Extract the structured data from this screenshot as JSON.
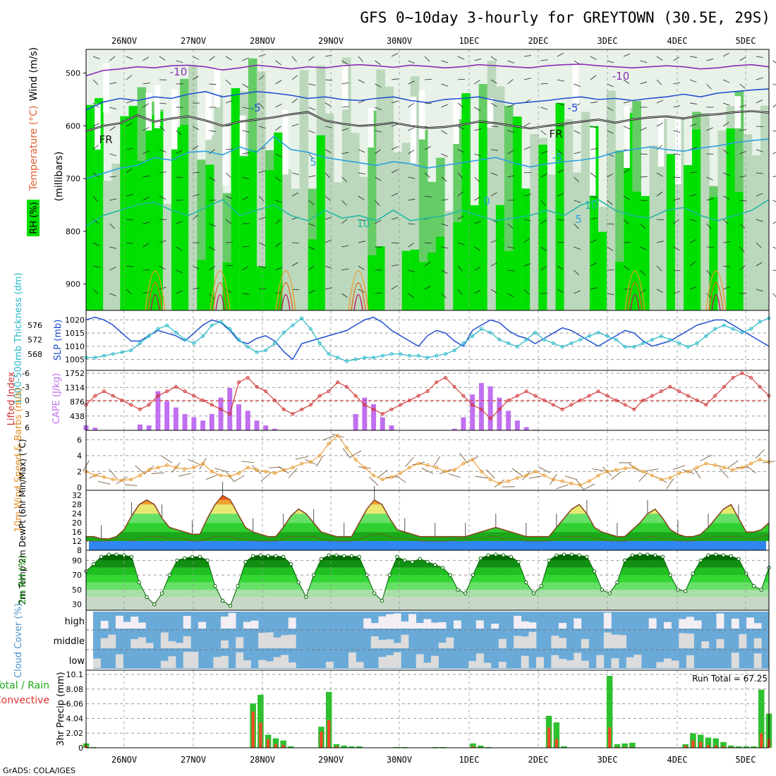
{
  "title": "GFS 0~10day 3-hourly for GREYTOWN (30.5E, 29S)",
  "footer": "GrADS: COLA/IGES",
  "colors": {
    "green": "#00e000",
    "midgreen": "#66cc66",
    "lightgreen": "#bcd8bc",
    "paleGreen": "#e8f2e8",
    "blue": "#1f4fcf",
    "cyan": "#26b8c8",
    "orange": "#e89a30",
    "purple": "#c070f0",
    "red": "#d03030",
    "cloud": "#6aaad8",
    "cloudlight": "#dcdcdc"
  },
  "chart_data": [
    {
      "type": "heatmap",
      "name": "upper-air",
      "dates": [
        "26NOV",
        "27NOV",
        "28NOV",
        "29NOV",
        "30NOV",
        "1DEC",
        "2DEC",
        "3DEC",
        "4DEC",
        "5DEC"
      ],
      "ylabel": "(millibars)",
      "yticks": [
        "500",
        "600",
        "700",
        "800",
        "900"
      ],
      "side_labels": [
        "Wind (m/s)",
        "Temperature (°C)",
        "RH (%)"
      ],
      "contour_labels": [
        "-10",
        "-5",
        "FR",
        "5",
        "10",
        "-10",
        "-5",
        "FR",
        "-5",
        "5",
        "10",
        "0"
      ],
      "temperature_lines": [
        {
          "label": "-10",
          "level": [
            505,
            495,
            492,
            488,
            490,
            486,
            485,
            488,
            494,
            490,
            485,
            488,
            492,
            488,
            490,
            486,
            484,
            486,
            489,
            485,
            487,
            490,
            488,
            484,
            486,
            488,
            490,
            486,
            484,
            483,
            486,
            488,
            490,
            488,
            486,
            488,
            492,
            490,
            486,
            484,
            488
          ]
        },
        {
          "label": "-5",
          "level": [
            570,
            555,
            548,
            552,
            545,
            548,
            540,
            535,
            545,
            540,
            535,
            538,
            542,
            548,
            545,
            550,
            552,
            548,
            545,
            552,
            556,
            550,
            548,
            545,
            552,
            558,
            555,
            552,
            548,
            545,
            550,
            548,
            552,
            548,
            545,
            540,
            545,
            538,
            535,
            532,
            530
          ]
        },
        {
          "label": "FR",
          "level": [
            610,
            600,
            595,
            580,
            592,
            586,
            582,
            590,
            600,
            592,
            588,
            584,
            578,
            574,
            590,
            596,
            600,
            598,
            594,
            600,
            604,
            602,
            598,
            592,
            595,
            600,
            605,
            600,
            596,
            592,
            588,
            594,
            588,
            584,
            582,
            586,
            580,
            578,
            574,
            572,
            575
          ]
        },
        {
          "label": "5",
          "level": [
            700,
            690,
            680,
            675,
            660,
            665,
            650,
            648,
            655,
            640,
            650,
            620,
            645,
            650,
            660,
            665,
            670,
            675,
            668,
            672,
            680,
            675,
            670,
            665,
            660,
            670,
            678,
            672,
            668,
            665,
            660,
            650,
            645,
            640,
            645,
            648,
            642,
            638,
            632,
            628,
            625
          ]
        },
        {
          "label": "10",
          "level": [
            790,
            770,
            760,
            750,
            745,
            760,
            770,
            755,
            740,
            770,
            760,
            750,
            770,
            780,
            760,
            775,
            770,
            780,
            760,
            780,
            775,
            770,
            760,
            770,
            780,
            775,
            770,
            760,
            770,
            750,
            740,
            760,
            770,
            775,
            760,
            755,
            770,
            780,
            770,
            760,
            740
          ]
        }
      ]
    },
    {
      "type": "line",
      "name": "slp-thickness",
      "ylabel_left": "1000-500mb Thickness (dm)",
      "ylabel_right": "SLP (mb)",
      "left_ticks": [
        "576",
        "572",
        "568"
      ],
      "right_ticks": [
        "1020",
        "1015",
        "1010",
        "1005"
      ],
      "series": [
        {
          "name": "SLP (mb)",
          "values": [
            1020,
            1021,
            1020,
            1018,
            1015,
            1012,
            1012,
            1014,
            1016,
            1015,
            1014,
            1012,
            1015,
            1018,
            1020,
            1019,
            1016,
            1012,
            1011,
            1013,
            1014,
            1012,
            1008,
            1005,
            1011,
            1012,
            1013,
            1014,
            1015,
            1016,
            1018,
            1020,
            1021,
            1019,
            1016,
            1014,
            1012,
            1010,
            1014,
            1016,
            1015,
            1012,
            1010,
            1016,
            1018,
            1020,
            1019,
            1016,
            1014,
            1013,
            1011,
            1013,
            1015,
            1017,
            1016,
            1014,
            1012,
            1010,
            1012,
            1014,
            1016,
            1015,
            1012,
            1010,
            1011,
            1012,
            1014,
            1016,
            1018,
            1019,
            1020,
            1020,
            1018,
            1016,
            1014,
            1012,
            1010
          ]
        },
        {
          "name": "1000-500mb Thickness (dm)",
          "values": [
            567,
            567,
            567.5,
            568,
            568.5,
            569,
            571,
            573,
            575,
            576,
            574,
            572,
            571,
            573,
            576,
            577,
            575,
            572,
            570,
            568.5,
            569,
            571,
            574,
            576,
            578,
            575,
            571,
            568,
            567,
            566,
            566.5,
            567,
            567,
            567.5,
            568,
            568,
            567.5,
            567.5,
            567,
            567.5,
            568,
            569,
            571,
            573,
            575,
            574,
            572,
            571,
            570,
            572,
            574,
            572,
            571,
            570,
            571,
            572,
            573,
            574,
            573,
            572,
            570,
            570,
            571,
            572,
            573,
            572,
            571,
            570,
            571,
            573,
            575,
            576,
            575,
            574,
            575,
            577,
            578
          ]
        }
      ]
    },
    {
      "type": "bar",
      "name": "cape-li",
      "ylabel_left": "Lifted Index",
      "ylabel_right": "CAPE (J/kg)",
      "left_ticks": [
        "-6",
        "-3",
        "0",
        "3",
        "6"
      ],
      "right_ticks": [
        "1752",
        "1314",
        "876",
        "438"
      ],
      "cape": [
        150,
        80,
        0,
        0,
        0,
        0,
        180,
        150,
        1200,
        900,
        700,
        500,
        400,
        300,
        500,
        1000,
        1300,
        800,
        600,
        300,
        150,
        50,
        0,
        0,
        0,
        0,
        0,
        0,
        0,
        0,
        500,
        1000,
        800,
        400,
        150,
        0,
        0,
        0,
        0,
        0,
        0,
        50,
        400,
        1100,
        1450,
        1350,
        1000,
        600,
        300,
        100,
        20,
        0,
        0,
        0,
        0,
        0,
        0,
        0,
        0,
        0,
        0,
        0,
        0,
        0,
        0,
        0,
        0,
        0,
        0,
        0,
        0,
        0,
        0,
        0,
        0,
        0,
        0
      ],
      "lifted_index": [
        1,
        -1,
        -2,
        -1,
        0,
        1,
        2,
        1,
        -1,
        -2,
        -3,
        -2,
        -1,
        0,
        1,
        2,
        3,
        -4,
        -5,
        -3,
        -2,
        0,
        2,
        3,
        2,
        1,
        -1,
        -2,
        -4,
        -3,
        -1,
        1,
        2,
        3,
        2,
        1,
        0,
        -1,
        -2,
        -4,
        -5,
        -3,
        -1,
        1,
        2,
        4,
        2,
        0,
        -1,
        -2,
        -1,
        0,
        1,
        2,
        1,
        0,
        -1,
        -2,
        -1,
        0,
        1,
        2,
        0,
        -1,
        -2,
        -3,
        -2,
        -1,
        0,
        1,
        -1,
        -3,
        -5,
        -6,
        -5,
        -3,
        -1
      ]
    },
    {
      "type": "line",
      "name": "wind10m",
      "ylabel": "10m Wind Speed & Barbs (m/s)",
      "yticks": [
        "0",
        "2",
        "4",
        "6"
      ],
      "series": [
        {
          "name": "Speed",
          "values": [
            2,
            1.5,
            1.3,
            1,
            0.9,
            1,
            1.5,
            2.2,
            2.5,
            2.8,
            2.5,
            2.3,
            2.5,
            3,
            2,
            1.5,
            1.4,
            1.8,
            2.5,
            2.2,
            2,
            1.8,
            2.2,
            2.5,
            3,
            3.2,
            4,
            5.5,
            6.5,
            5,
            3.5,
            2.5,
            1.5,
            1,
            1.3,
            1.8,
            2.5,
            3,
            2.8,
            2.5,
            2,
            2.2,
            3,
            3.5,
            2,
            1,
            0.5,
            0.8,
            1.2,
            1.5,
            2,
            1.5,
            1,
            0.8,
            0.5,
            0.3,
            0.8,
            1.5,
            2,
            2.2,
            2.4,
            2.5,
            2,
            1.5,
            1,
            1.2,
            1.8,
            2,
            2.5,
            3,
            2.8,
            2.5,
            2.2,
            2.5,
            3,
            3.5,
            3.2
          ]
        }
      ]
    },
    {
      "type": "area",
      "name": "temp2m",
      "ylabel": "2m Temp 2m DewPt (6hr Min/Max) (°C)",
      "yticks": [
        "8",
        "12",
        "16",
        "20",
        "24",
        "28",
        "32"
      ],
      "series": [
        {
          "name": "2m Temp",
          "values": [
            14,
            14,
            13,
            13,
            14,
            17,
            23,
            28,
            30,
            28,
            22,
            18,
            17,
            16,
            15,
            15,
            22,
            28,
            32,
            30,
            24,
            18,
            16,
            15,
            14,
            14,
            18,
            23,
            26,
            24,
            20,
            16,
            15,
            14,
            14,
            14,
            20,
            26,
            30,
            28,
            22,
            17,
            16,
            15,
            14,
            14,
            14,
            14,
            14,
            14,
            14,
            15,
            16,
            17,
            18,
            17,
            16,
            15,
            14,
            14,
            14,
            14,
            18,
            22,
            26,
            28,
            24,
            18,
            16,
            15,
            14,
            14,
            17,
            20,
            24,
            26,
            22,
            17,
            15,
            14,
            14,
            15,
            18,
            22,
            26,
            28,
            22,
            16,
            16,
            17,
            20
          ]
        },
        {
          "name": "2m DewPt",
          "values": [
            12,
            12,
            12,
            12,
            13,
            13,
            12,
            13,
            14,
            14,
            14,
            13,
            13,
            13,
            12,
            12,
            13,
            14,
            14,
            14,
            13,
            13,
            12,
            12,
            12,
            12,
            13,
            14,
            14,
            14,
            14,
            13,
            12,
            12,
            12,
            12,
            13,
            14,
            15,
            15,
            14,
            13,
            13,
            13,
            12,
            12,
            12,
            12,
            12,
            13,
            13,
            13,
            13,
            14,
            14,
            13,
            13,
            13,
            12,
            12,
            12,
            12,
            13,
            14,
            14,
            14,
            14,
            13,
            13,
            12,
            12,
            12,
            13,
            13,
            14,
            14,
            13,
            13,
            12,
            12,
            12,
            13,
            13,
            14,
            14,
            14,
            14,
            13,
            13,
            14,
            15
          ]
        }
      ]
    },
    {
      "type": "area",
      "name": "rh2m",
      "ylabel": "2m RH (%)",
      "yticks": [
        "30",
        "50",
        "70",
        "90"
      ],
      "series": [
        {
          "name": "2m RH",
          "values": [
            75,
            85,
            95,
            98,
            98,
            97,
            95,
            60,
            40,
            30,
            45,
            70,
            90,
            93,
            95,
            95,
            90,
            55,
            35,
            28,
            55,
            88,
            96,
            97,
            96,
            96,
            95,
            85,
            60,
            40,
            70,
            92,
            97,
            97,
            96,
            96,
            95,
            70,
            45,
            35,
            70,
            95,
            90,
            88,
            92,
            88,
            84,
            80,
            70,
            50,
            45,
            70,
            93,
            97,
            98,
            97,
            95,
            88,
            60,
            45,
            55,
            90,
            97,
            98,
            98,
            97,
            95,
            75,
            50,
            45,
            60,
            90,
            97,
            98,
            98,
            97,
            95,
            70,
            50,
            48,
            72,
            90,
            97,
            98,
            97,
            96,
            92,
            72,
            55,
            50,
            80
          ]
        }
      ]
    },
    {
      "type": "heatmap",
      "name": "cloud",
      "ylabel": "Cloud Cover (%)",
      "yticks": [
        "high",
        "middle",
        "low"
      ]
    },
    {
      "type": "bar",
      "name": "precip",
      "ylabel": "3hr Precip (mm)",
      "side_label": "Total / Rain Convective",
      "yticks": [
        "0",
        "2.02",
        "4.04",
        "6.06",
        "8.08",
        "10.1"
      ],
      "run_total_label": "Run Total = 67.25",
      "total": [
        0.6,
        0.1,
        0,
        0,
        0,
        0,
        0,
        0,
        0,
        0,
        0,
        0,
        0,
        0,
        0,
        0,
        0,
        0,
        0,
        0,
        0,
        0,
        6.1,
        7.3,
        1.8,
        1.3,
        1.0,
        0.2,
        0,
        0,
        0,
        2.9,
        7.7,
        0.5,
        0.3,
        0.2,
        0.2,
        0,
        0,
        0,
        0,
        0.1,
        0.1,
        0,
        0,
        0,
        0.1,
        0.1,
        0,
        0,
        0,
        0.6,
        0.3,
        0.1,
        0,
        0,
        0,
        0,
        0,
        0,
        0,
        4.4,
        3.5,
        0.2,
        0,
        0,
        0,
        0,
        0,
        9.9,
        0.5,
        0.6,
        0.7,
        0,
        0,
        0,
        0,
        0,
        0,
        0.5,
        2.0,
        1.8,
        1.4,
        1.3,
        0.8,
        0.3,
        0.2,
        0.2,
        0.2,
        8.0,
        4.7
      ],
      "convective": [
        0.3,
        0,
        0,
        0,
        0,
        0,
        0,
        0,
        0,
        0,
        0,
        0,
        0,
        0,
        0,
        0,
        0,
        0,
        0,
        0,
        0,
        0,
        5.0,
        3.5,
        1.2,
        0.5,
        0.4,
        0,
        0,
        0,
        0,
        2.2,
        3.8,
        0.2,
        0,
        0,
        0,
        0,
        0,
        0,
        0,
        0,
        0,
        0,
        0,
        0,
        0,
        0,
        0,
        0,
        0,
        0.2,
        0,
        0,
        0,
        0,
        0,
        0,
        0,
        0,
        0,
        2.8,
        1.2,
        0,
        0,
        0,
        0,
        0,
        0,
        2.8,
        0.1,
        0.1,
        0.1,
        0,
        0,
        0,
        0,
        0,
        0,
        0.3,
        1.0,
        0.8,
        0.4,
        0.3,
        0.2,
        0.1,
        0,
        0,
        0,
        2.0,
        1.2
      ]
    }
  ]
}
